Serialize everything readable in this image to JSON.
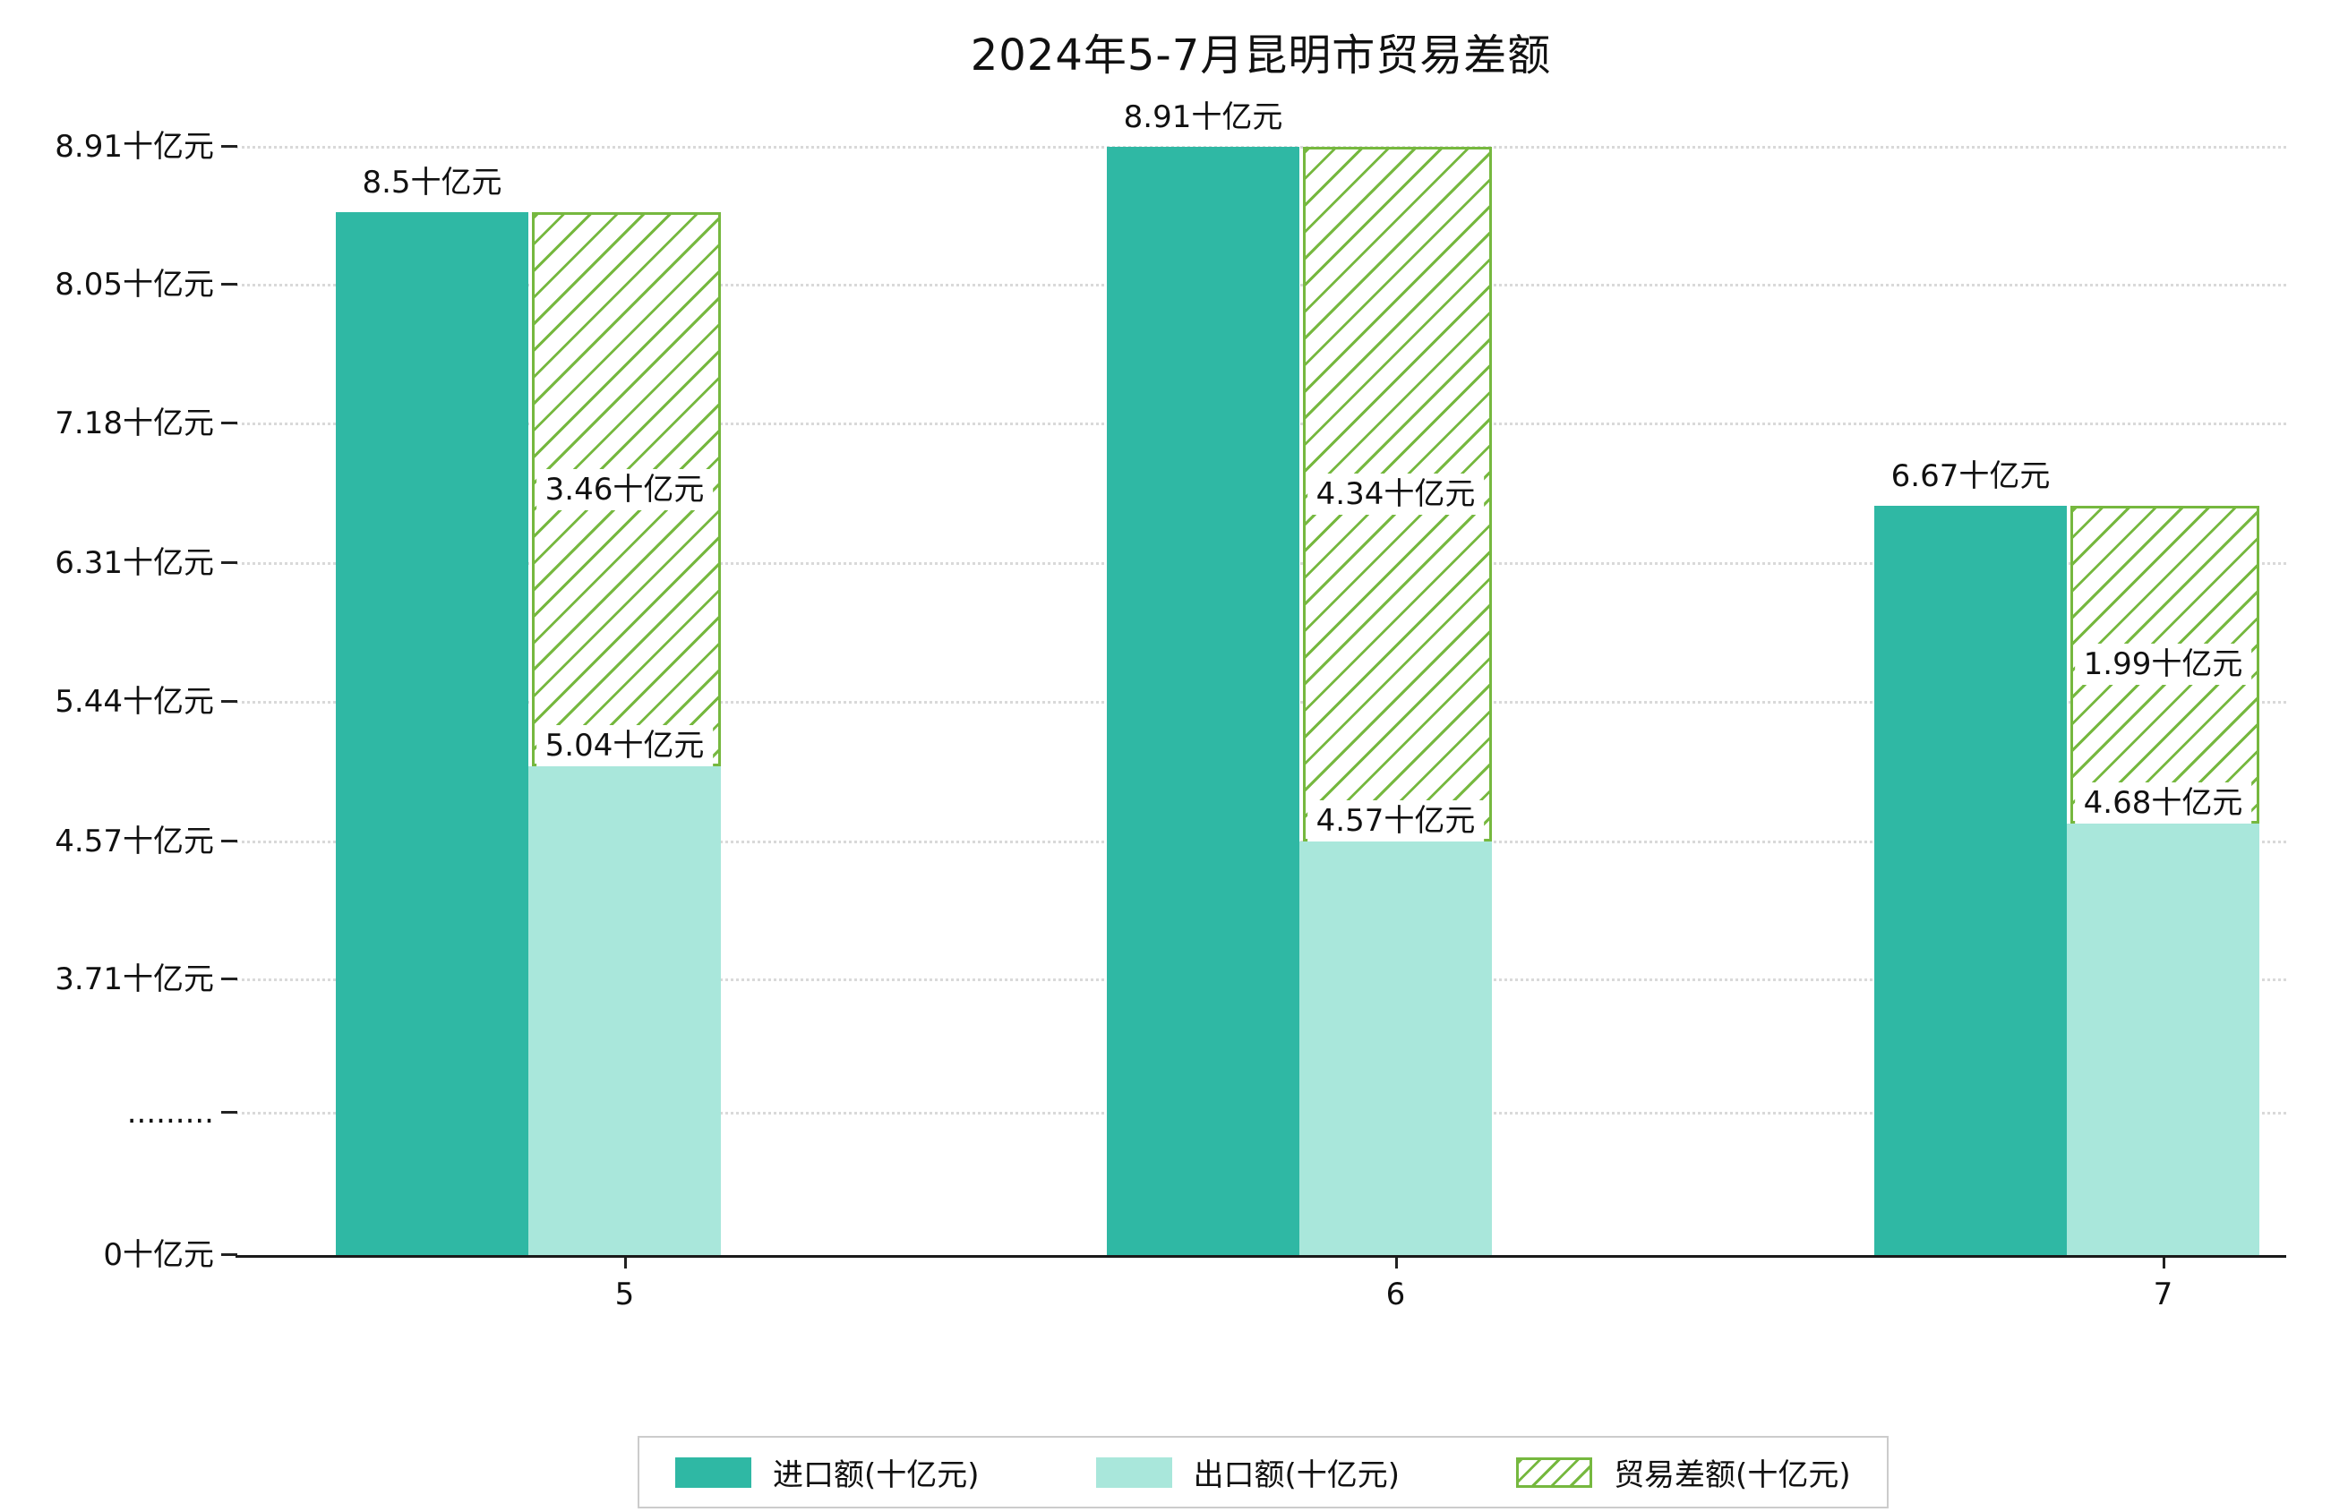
{
  "title": "2024年5-7月昆明市贸易差额",
  "chart_data": {
    "type": "bar",
    "title": "2024年5-7月昆明市贸易差额",
    "categories": [
      "5",
      "6",
      "7"
    ],
    "unit": "十亿元",
    "series": [
      {
        "name": "进口额(十亿元)",
        "values": [
          8.5,
          8.91,
          6.67
        ],
        "color": "#2fb8a4",
        "pattern": "solid"
      },
      {
        "name": "出口额(十亿元)",
        "values": [
          5.04,
          4.57,
          4.68
        ],
        "color": "#a9e7db",
        "pattern": "solid"
      },
      {
        "name": "贸易差额(十亿元)",
        "values": [
          3.46,
          4.34,
          1.99
        ],
        "color": "#76b83f",
        "pattern": "hatch"
      }
    ],
    "bar_labels": {
      "import": [
        "8.5十亿元",
        "8.91十亿元",
        "6.67十亿元"
      ],
      "export": [
        "5.04十亿元",
        "4.57十亿元",
        "4.68十亿元"
      ],
      "diff": [
        "3.46十亿元",
        "4.34十亿元",
        "1.99十亿元"
      ]
    },
    "yticks": [
      {
        "label": "8.91十亿元",
        "value": 8.91
      },
      {
        "label": "8.05十亿元",
        "value": 8.05
      },
      {
        "label": "7.18十亿元",
        "value": 7.18
      },
      {
        "label": "6.31十亿元",
        "value": 6.31
      },
      {
        "label": "5.44十亿元",
        "value": 5.44
      },
      {
        "label": "4.57十亿元",
        "value": 4.57
      },
      {
        "label": "3.71十亿元",
        "value": 3.71
      },
      {
        "label": ".........",
        "value": null
      },
      {
        "label": "0十亿元",
        "value": 0
      }
    ],
    "axis_break": true,
    "grid": "dotted-horizontal",
    "legend_position": "bottom-center",
    "ylim_visible": [
      0,
      8.91
    ]
  },
  "colors": {
    "background": "#ffffff",
    "grid": "#d9d9d9",
    "axis": "#1a1a1a",
    "text": "#111111",
    "legend_border": "#cccccc"
  }
}
